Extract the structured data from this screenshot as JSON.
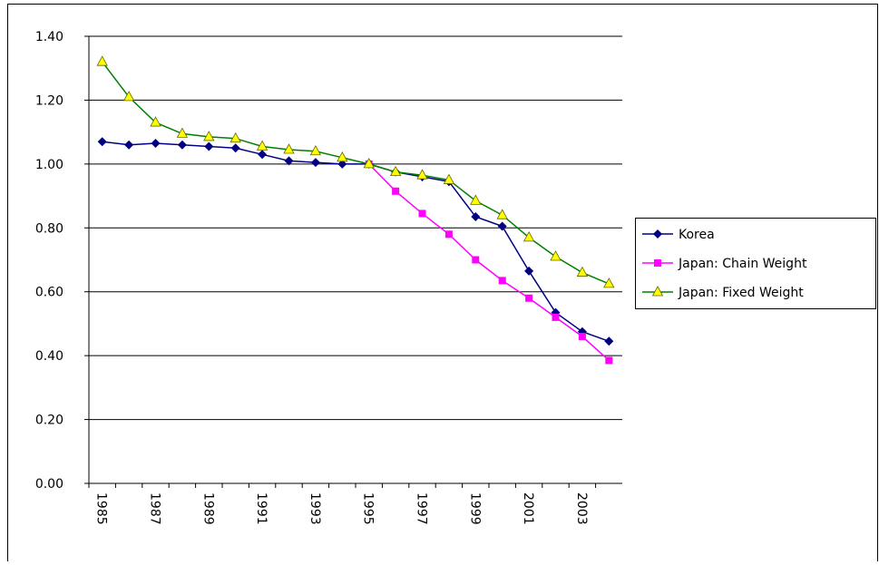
{
  "chart_data": {
    "type": "line",
    "categories": [
      "1985",
      null,
      "1987",
      null,
      "1989",
      null,
      "1991",
      null,
      "1993",
      null,
      "1995",
      null,
      "1997",
      null,
      "1999",
      null,
      "2001",
      null,
      "2003",
      null
    ],
    "series": [
      {
        "name": "Korea",
        "color": "#000080",
        "marker": "diamond",
        "marker_color": "#000080",
        "values": [
          1.07,
          1.06,
          1.065,
          1.06,
          1.055,
          1.05,
          1.03,
          1.01,
          1.005,
          1.0,
          1.0,
          0.975,
          0.96,
          0.945,
          0.835,
          0.805,
          0.665,
          0.535,
          0.475,
          0.445
        ]
      },
      {
        "name": "Japan: Chain Weight",
        "color": "#ff00ff",
        "marker": "square",
        "marker_color": "#ff00ff",
        "values": [
          null,
          null,
          null,
          null,
          null,
          null,
          null,
          null,
          null,
          null,
          1.0,
          0.915,
          0.845,
          0.78,
          0.7,
          0.635,
          0.58,
          0.52,
          0.46,
          0.385
        ]
      },
      {
        "name": "Japan: Fixed Weight",
        "color": "#008000",
        "marker": "triangle",
        "marker_color": "#ffff00",
        "values": [
          1.32,
          1.21,
          1.13,
          1.095,
          1.085,
          1.08,
          1.055,
          1.045,
          1.04,
          1.02,
          1.0,
          0.975,
          0.965,
          0.95,
          0.885,
          0.84,
          0.77,
          0.71,
          0.66,
          0.625
        ]
      }
    ],
    "ylim": [
      0,
      1.4
    ],
    "yticks": [
      {
        "value": 0,
        "label": "0.00"
      },
      {
        "value": 0.2,
        "label": "0.20"
      },
      {
        "value": 0.4,
        "label": "0.40"
      },
      {
        "value": 0.6,
        "label": "0.60"
      },
      {
        "value": 0.8,
        "label": "0.80"
      },
      {
        "value": 1.0,
        "label": "1.00"
      },
      {
        "value": 1.2,
        "label": "1.20"
      },
      {
        "value": 1.4,
        "label": "1.40"
      }
    ],
    "grid": true,
    "legend": "right"
  }
}
